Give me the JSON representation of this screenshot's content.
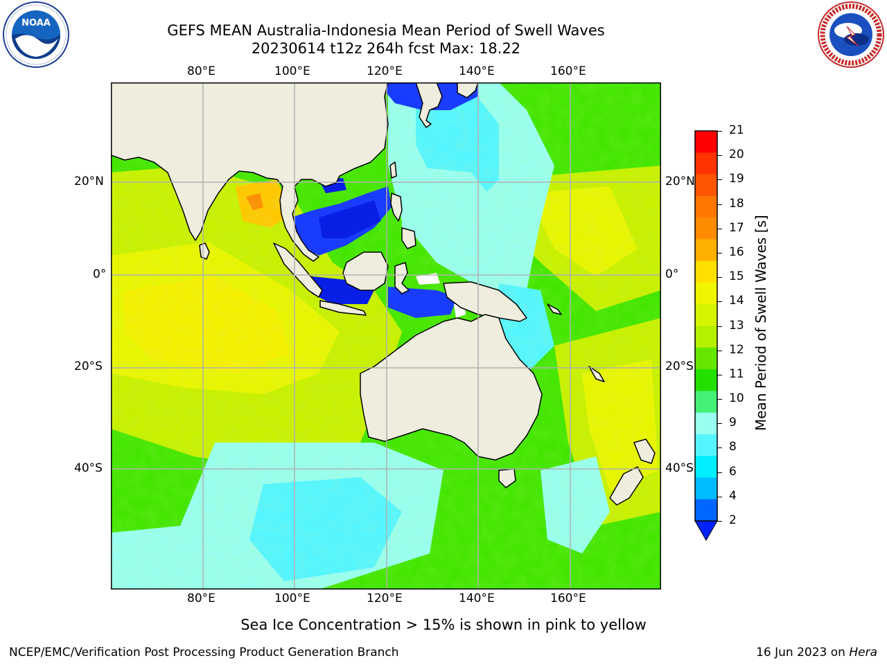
{
  "header": {
    "title_line1": "GEFS MEAN Australia-Indonesia Mean Period of Swell Waves",
    "title_line2": "20230614 t12z 264h fcst   Max: 18.22"
  },
  "logos": {
    "left": {
      "text": "NOAA",
      "ring_text": "NATIONAL OCEANIC AND ATMOSPHERIC ADMINISTRATION · U.S. DEPARTMENT OF COMMERCE"
    },
    "right": {
      "ring_text": "NATIONAL WEATHER SERVICE"
    }
  },
  "map": {
    "lon_ticks": [
      "80°E",
      "100°E",
      "120°E",
      "140°E",
      "160°E"
    ],
    "lat_ticks_left": [
      "20°N",
      "0°",
      "20°S",
      "40°S"
    ],
    "lat_ticks_right": [
      "20°N",
      "0°",
      "20°S",
      "40°S"
    ],
    "land_color": "#efedde",
    "grid_color": "#b0b0b0"
  },
  "colorbar": {
    "label": "Mean Period of Swell Waves [s]",
    "ticks": [
      "21",
      "20",
      "19",
      "18",
      "17",
      "16",
      "15",
      "14",
      "13",
      "12",
      "11",
      "10",
      "9",
      "8",
      "6",
      "4",
      "2"
    ],
    "colors": [
      "#ff0000",
      "#ff3300",
      "#ff5500",
      "#ff7700",
      "#ff8c00",
      "#ffb000",
      "#ffe000",
      "#f0f500",
      "#d6f500",
      "#b4f000",
      "#66e600",
      "#22e000",
      "#44f077",
      "#99ffee",
      "#55f5ff",
      "#00eeff",
      "#00bbff",
      "#0066ff"
    ],
    "under_color": "#0022ff"
  },
  "note": "Sea Ice Concentration > 15% is shown in pink to yellow",
  "footer": {
    "left": "NCEP/EMC/Verification Post Processing Product Generation Branch",
    "date": "16 Jun 2023 on ",
    "host": "Hera"
  }
}
